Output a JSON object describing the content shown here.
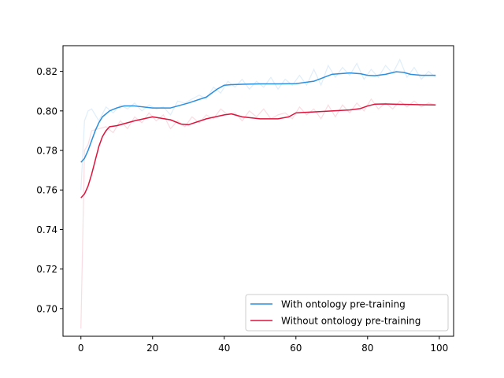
{
  "chart_data": {
    "type": "line",
    "title": "",
    "xlabel": "",
    "ylabel": "",
    "xlim": [
      -5,
      104
    ],
    "ylim": [
      0.686,
      0.833
    ],
    "xticks": [
      0,
      20,
      40,
      60,
      80,
      100
    ],
    "yticks": [
      0.7,
      0.72,
      0.74,
      0.76,
      0.78,
      0.8,
      0.82
    ],
    "ytick_labels": [
      "0.70",
      "0.72",
      "0.74",
      "0.76",
      "0.78",
      "0.80",
      "0.82"
    ],
    "grid": false,
    "legend_position": "lower-right",
    "series": [
      {
        "name": "With ontology pre-training",
        "color": "#2a8fe0",
        "smoothed": {
          "x": [
            0,
            1,
            2,
            3,
            4,
            5,
            6,
            8,
            10,
            12,
            15,
            20,
            25,
            30,
            35,
            38,
            40,
            42,
            45,
            50,
            55,
            60,
            65,
            70,
            75,
            78,
            80,
            82,
            85,
            88,
            90,
            92,
            95,
            99
          ],
          "y": [
            0.774,
            0.776,
            0.78,
            0.785,
            0.79,
            0.794,
            0.797,
            0.8,
            0.8015,
            0.8025,
            0.8025,
            0.8015,
            0.8015,
            0.804,
            0.807,
            0.811,
            0.813,
            0.8133,
            0.8135,
            0.8137,
            0.8137,
            0.8138,
            0.815,
            0.8185,
            0.8192,
            0.8188,
            0.818,
            0.8178,
            0.8185,
            0.8198,
            0.8195,
            0.8185,
            0.818,
            0.818
          ]
        },
        "raw": {
          "x": [
            0,
            1,
            2,
            3,
            5,
            7,
            9,
            11,
            13,
            15,
            17,
            19,
            21,
            23,
            25,
            27,
            29,
            31,
            33,
            35,
            37,
            39,
            41,
            43,
            45,
            47,
            49,
            51,
            53,
            55,
            57,
            59,
            61,
            63,
            65,
            67,
            69,
            71,
            73,
            75,
            77,
            79,
            81,
            83,
            85,
            87,
            89,
            91,
            93,
            95,
            97,
            99
          ],
          "y": [
            0.76,
            0.795,
            0.8,
            0.801,
            0.795,
            0.802,
            0.799,
            0.803,
            0.801,
            0.804,
            0.8,
            0.803,
            0.801,
            0.802,
            0.798,
            0.805,
            0.804,
            0.806,
            0.808,
            0.806,
            0.812,
            0.809,
            0.815,
            0.812,
            0.816,
            0.811,
            0.815,
            0.812,
            0.817,
            0.811,
            0.816,
            0.813,
            0.818,
            0.813,
            0.821,
            0.813,
            0.823,
            0.817,
            0.822,
            0.818,
            0.824,
            0.816,
            0.821,
            0.817,
            0.823,
            0.819,
            0.826,
            0.817,
            0.822,
            0.816,
            0.82,
            0.817
          ]
        }
      },
      {
        "name": "Without ontology pre-training",
        "color": "#dc143c",
        "smoothed": {
          "x": [
            0,
            1,
            2,
            3,
            4,
            5,
            6,
            7,
            8,
            10,
            12,
            15,
            20,
            25,
            28,
            30,
            35,
            40,
            42,
            45,
            50,
            55,
            58,
            60,
            65,
            70,
            75,
            78,
            80,
            82,
            85,
            90,
            95,
            99
          ],
          "y": [
            0.756,
            0.758,
            0.762,
            0.768,
            0.775,
            0.782,
            0.787,
            0.79,
            0.792,
            0.7925,
            0.7935,
            0.795,
            0.797,
            0.7955,
            0.7933,
            0.793,
            0.796,
            0.798,
            0.7985,
            0.797,
            0.796,
            0.796,
            0.797,
            0.799,
            0.7995,
            0.8,
            0.8005,
            0.8012,
            0.8025,
            0.8034,
            0.8035,
            0.8033,
            0.8031,
            0.803
          ]
        },
        "raw": {
          "x": [
            0,
            1,
            2,
            3,
            5,
            7,
            9,
            11,
            13,
            15,
            17,
            19,
            21,
            23,
            25,
            27,
            29,
            31,
            33,
            35,
            37,
            39,
            41,
            43,
            45,
            47,
            49,
            51,
            53,
            55,
            57,
            59,
            61,
            63,
            65,
            67,
            69,
            71,
            73,
            75,
            77,
            79,
            81,
            83,
            85,
            87,
            89,
            91,
            93,
            95,
            97,
            99
          ],
          "y": [
            0.69,
            0.78,
            0.783,
            0.79,
            0.791,
            0.792,
            0.789,
            0.795,
            0.791,
            0.797,
            0.794,
            0.799,
            0.795,
            0.798,
            0.791,
            0.795,
            0.792,
            0.797,
            0.794,
            0.798,
            0.796,
            0.801,
            0.798,
            0.799,
            0.795,
            0.8,
            0.797,
            0.801,
            0.796,
            0.798,
            0.799,
            0.796,
            0.802,
            0.798,
            0.801,
            0.796,
            0.803,
            0.797,
            0.803,
            0.799,
            0.804,
            0.8,
            0.806,
            0.801,
            0.804,
            0.801,
            0.805,
            0.802,
            0.805,
            0.802,
            0.804,
            0.803
          ]
        }
      }
    ]
  }
}
